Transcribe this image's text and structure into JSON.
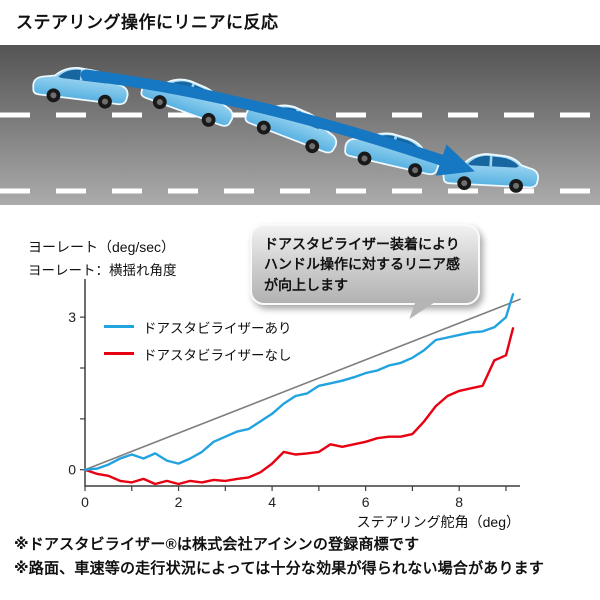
{
  "title": "ステアリング操作にリニアに反応",
  "colors": {
    "car_blue": "#8fd2f1",
    "arrow_blue": "#1677c2",
    "line_with_stabilizer": "#22a3e0",
    "line_without_stabilizer": "#e60012",
    "reference_gray": "#7f7f7f",
    "road_gray": "#7e7e7e"
  },
  "bubble": {
    "text": "ドアスタビライザー装着によりハンドル操作に対するリニア感が向上します"
  },
  "chart": {
    "ylabel_line1": "ヨーレート（deg/sec）",
    "ylabel_line2": "ヨーレート：横揺れ角度"
  },
  "chart_data": {
    "type": "line",
    "title": "",
    "xlabel": "ステアリング舵角（deg）",
    "ylabel": "ヨーレート（deg/sec）",
    "xlim": [
      0,
      9.3
    ],
    "ylim": [
      -0.32,
      3.75
    ],
    "x_ticks_labeled": [
      0,
      2,
      4,
      6,
      8
    ],
    "x_ticks_minor": [
      0,
      1,
      2,
      3,
      4,
      5,
      6,
      7,
      8,
      9
    ],
    "y_ticks_labeled": [
      0,
      3
    ],
    "y_ticks_minor": [
      0,
      1,
      2,
      3
    ],
    "grid": false,
    "legend_position": "upper-left-inside",
    "x": [
      0,
      0.25,
      0.5,
      0.75,
      1,
      1.25,
      1.5,
      1.75,
      2,
      2.25,
      2.5,
      2.75,
      3,
      3.25,
      3.5,
      3.75,
      4,
      4.25,
      4.5,
      4.75,
      5,
      5.25,
      5.5,
      5.75,
      6,
      6.25,
      6.5,
      6.75,
      7,
      7.25,
      7.5,
      7.75,
      8,
      8.25,
      8.5,
      8.75,
      9,
      9.15
    ],
    "series": [
      {
        "name": "ドアスタビライザーあり",
        "color": "#22a3e0",
        "width": 2.4,
        "y": [
          0,
          0.02,
          0.1,
          0.22,
          0.3,
          0.22,
          0.32,
          0.18,
          0.12,
          0.22,
          0.35,
          0.55,
          0.65,
          0.75,
          0.8,
          0.95,
          1.1,
          1.3,
          1.45,
          1.5,
          1.65,
          1.7,
          1.75,
          1.82,
          1.9,
          1.95,
          2.05,
          2.1,
          2.2,
          2.35,
          2.55,
          2.6,
          2.65,
          2.7,
          2.72,
          2.8,
          3.0,
          3.45
        ]
      },
      {
        "name": "ドアスタビライザーなし",
        "color": "#e60012",
        "width": 2.4,
        "y": [
          0,
          -0.08,
          -0.12,
          -0.22,
          -0.25,
          -0.18,
          -0.28,
          -0.22,
          -0.28,
          -0.22,
          -0.25,
          -0.2,
          -0.22,
          -0.18,
          -0.15,
          -0.05,
          0.12,
          0.35,
          0.3,
          0.32,
          0.35,
          0.5,
          0.45,
          0.5,
          0.55,
          0.62,
          0.65,
          0.65,
          0.7,
          0.95,
          1.25,
          1.45,
          1.55,
          1.6,
          1.65,
          2.15,
          2.25,
          2.78
        ]
      },
      {
        "role": "reference",
        "name": "",
        "color": "#7f7f7f",
        "width": 1.6,
        "x": [
          0,
          9.3
        ],
        "y": [
          0,
          3.35
        ]
      }
    ]
  },
  "notes": [
    "※ドアスタビライザー®は株式会社アイシンの登録商標です",
    "※路面、車速等の走行状況によっては十分な効果が得られない場合があります"
  ]
}
